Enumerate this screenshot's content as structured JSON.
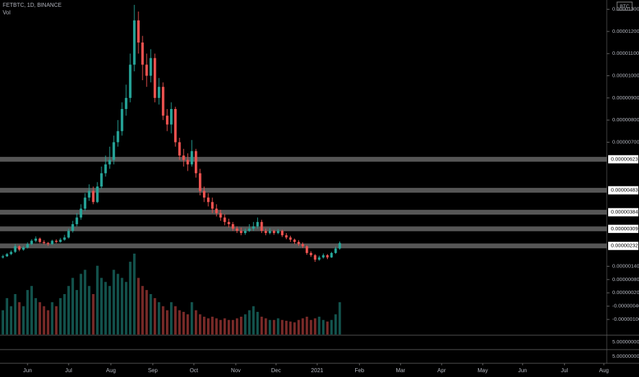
{
  "chart_data": {
    "type": "candlestick",
    "title": "FETBTC, 1D, BINANCE",
    "volume_label": "Vol",
    "currency": "BTC",
    "up_color": "#26a69a",
    "down_color": "#ef5350",
    "open": [
      1.8e-06,
      1.85e-06,
      1.95e-06,
      2.05e-06,
      2.3e-06,
      2.15e-06,
      2.25e-06,
      2.4e-06,
      2.55e-06,
      2.65e-06,
      2.5e-06,
      2.45e-06,
      2.4e-06,
      2.55e-06,
      2.5e-06,
      2.6e-06,
      2.7e-06,
      3e-06,
      3.3e-06,
      3.6e-06,
      4e-06,
      4.5e-06,
      4.8e-06,
      4.3e-06,
      5e-06,
      5.6e-06,
      6e-06,
      6.2e-06,
      7e-06,
      7.5e-06,
      8.5e-06,
      9e-06,
      1.05e-05,
      1.25e-05,
      1.15e-05,
      1.05e-05,
      1e-05,
      1.08e-05,
      9e-06,
      9.5e-06,
      8.2e-06,
      7.8e-06,
      8.5e-06,
      7e-06,
      6.4e-06,
      6.2e-06,
      6e-06,
      6.6e-06,
      5.6e-06,
      4.8e-06,
      4.5e-06,
      4.3e-06,
      4e-06,
      3.8e-06,
      3.6e-06,
      3.4e-06,
      3.3e-06,
      3.1e-06,
      3e-06,
      2.9e-06,
      3e-06,
      3.1e-06,
      3.2e-06,
      3.4e-06,
      3e-06,
      2.9e-06,
      3e-06,
      2.9e-06,
      3e-06,
      2.8e-06,
      2.7e-06,
      2.6e-06,
      2.5e-06,
      2.4e-06,
      2.3e-06,
      2e-06,
      1.9e-06,
      1.7e-06,
      1.8e-06,
      1.9e-06,
      1.8e-06,
      2e-06,
      2.2e-06
    ],
    "high": [
      1.92e-06,
      2e-06,
      2.12e-06,
      2.4e-06,
      2.35e-06,
      2.32e-06,
      2.48e-06,
      2.62e-06,
      2.75e-06,
      2.7e-06,
      2.58e-06,
      2.5e-06,
      2.6e-06,
      2.62e-06,
      2.68e-06,
      2.82e-06,
      3.1e-06,
      3.45e-06,
      3.8e-06,
      4.2e-06,
      4.7e-06,
      5.1e-06,
      5e-06,
      5.2e-06,
      5.9e-06,
      6.4e-06,
      6.8e-06,
      7.3e-06,
      8e-06,
      8.8e-06,
      9.6e-06,
      1.1e-05,
      1.32e-05,
      1.29e-05,
      1.18e-05,
      1.1e-05,
      1.12e-05,
      1.1e-05,
      9.9e-06,
      9.7e-06,
      8.5e-06,
      8.8e-06,
      8.6e-06,
      7.2e-06,
      6.7e-06,
      6.5e-06,
      7.1e-06,
      6.7e-06,
      5.8e-06,
      5e-06,
      4.7e-06,
      4.5e-06,
      4.2e-06,
      3.95e-06,
      3.75e-06,
      3.55e-06,
      3.4e-06,
      3.2e-06,
      3.15e-06,
      3.1e-06,
      3.3e-06,
      3.4e-06,
      3.6e-06,
      3.5e-06,
      3.1e-06,
      3.12e-06,
      3.05e-06,
      3.08e-06,
      3.05e-06,
      2.9e-06,
      2.78e-06,
      2.65e-06,
      2.58e-06,
      2.48e-06,
      2.35e-06,
      2.08e-06,
      1.95e-06,
      1.88e-06,
      1.98e-06,
      1.95e-06,
      2.05e-06,
      2.28e-06,
      2.52e-06
    ],
    "low": [
      1.75e-06,
      1.82e-06,
      1.9e-06,
      2e-06,
      2.08e-06,
      2.1e-06,
      2.2e-06,
      2.35e-06,
      2.48e-06,
      2.44e-06,
      2.38e-06,
      2.32e-06,
      2.36e-06,
      2.44e-06,
      2.46e-06,
      2.55e-06,
      2.65e-06,
      2.92e-06,
      3.2e-06,
      3.5e-06,
      3.9e-06,
      4.35e-06,
      4.2e-06,
      4.25e-06,
      4.9e-06,
      5.45e-06,
      5.8e-06,
      6e-06,
      6.8e-06,
      7.3e-06,
      8.2e-06,
      8.8e-06,
      1.02e-05,
      1.1e-05,
      9.8e-06,
      9.5e-06,
      9.7e-06,
      8.8e-06,
      8.7e-06,
      8e-06,
      7.5e-06,
      7.4e-06,
      6.8e-06,
      6.2e-06,
      5.9e-06,
      5.7e-06,
      5.9e-06,
      5.4e-06,
      4.6e-06,
      4.3e-06,
      4.1e-06,
      3.8e-06,
      3.65e-06,
      3.45e-06,
      3.25e-06,
      3.15e-06,
      3e-06,
      2.9e-06,
      2.8e-06,
      2.82e-06,
      2.95e-06,
      3e-06,
      3.1e-06,
      2.9e-06,
      2.8e-06,
      2.84e-06,
      2.82e-06,
      2.85e-06,
      2.72e-06,
      2.62e-06,
      2.5e-06,
      2.4e-06,
      2.32e-06,
      2.22e-06,
      1.92e-06,
      1.82e-06,
      1.6e-06,
      1.65e-06,
      1.75e-06,
      1.72e-06,
      1.78e-06,
      1.96e-06,
      2.15e-06
    ],
    "close": [
      1.85e-06,
      1.95e-06,
      2.05e-06,
      2.3e-06,
      2.15e-06,
      2.25e-06,
      2.4e-06,
      2.55e-06,
      2.65e-06,
      2.5e-06,
      2.45e-06,
      2.4e-06,
      2.55e-06,
      2.5e-06,
      2.6e-06,
      2.7e-06,
      3e-06,
      3.3e-06,
      3.6e-06,
      4e-06,
      4.5e-06,
      4.8e-06,
      4.3e-06,
      5e-06,
      5.6e-06,
      6e-06,
      6.2e-06,
      7e-06,
      7.5e-06,
      8.5e-06,
      9e-06,
      1.05e-05,
      1.25e-05,
      1.15e-05,
      1.05e-05,
      1e-05,
      1.08e-05,
      9e-06,
      9.5e-06,
      8.2e-06,
      7.8e-06,
      8.5e-06,
      7e-06,
      6.4e-06,
      6.2e-06,
      6e-06,
      6.6e-06,
      5.6e-06,
      4.8e-06,
      4.5e-06,
      4.3e-06,
      4e-06,
      3.8e-06,
      3.6e-06,
      3.4e-06,
      3.3e-06,
      3.1e-06,
      3e-06,
      2.9e-06,
      3e-06,
      3.1e-06,
      3.2e-06,
      3.4e-06,
      3e-06,
      2.9e-06,
      3e-06,
      2.9e-06,
      3e-06,
      2.8e-06,
      2.7e-06,
      2.6e-06,
      2.5e-06,
      2.4e-06,
      2.3e-06,
      2e-06,
      1.9e-06,
      1.7e-06,
      1.8e-06,
      1.9e-06,
      1.8e-06,
      2e-06,
      2.2e-06,
      2.45e-06
    ],
    "volume": [
      30,
      45,
      35,
      50,
      40,
      35,
      55,
      60,
      45,
      40,
      35,
      30,
      40,
      35,
      45,
      50,
      60,
      70,
      55,
      75,
      80,
      60,
      50,
      85,
      70,
      65,
      60,
      80,
      75,
      70,
      65,
      90,
      100,
      70,
      60,
      55,
      50,
      45,
      40,
      35,
      30,
      40,
      35,
      30,
      28,
      25,
      40,
      30,
      25,
      22,
      20,
      22,
      20,
      18,
      20,
      18,
      18,
      20,
      22,
      25,
      30,
      35,
      28,
      22,
      20,
      18,
      18,
      20,
      18,
      17,
      16,
      15,
      18,
      20,
      22,
      18,
      20,
      22,
      18,
      16,
      18,
      25,
      40
    ],
    "xlim": [
      -0.7,
      147
    ],
    "xticks": [
      {
        "value": 6,
        "label": "Jun"
      },
      {
        "value": 16,
        "label": "Jul"
      },
      {
        "value": 26.3,
        "label": "Aug"
      },
      {
        "value": 36.5,
        "label": "Sep"
      },
      {
        "value": 46.5,
        "label": "Oct"
      },
      {
        "value": 56.7,
        "label": "Nov"
      },
      {
        "value": 66.5,
        "label": "Dec"
      },
      {
        "value": 76.5,
        "label": "2021"
      },
      {
        "value": 86.8,
        "label": "Feb"
      },
      {
        "value": 96.8,
        "label": "Mar"
      },
      {
        "value": 106.8,
        "label": "Apr"
      },
      {
        "value": 116.8,
        "label": "May"
      },
      {
        "value": 126.5,
        "label": "Jun"
      },
      {
        "value": 136.7,
        "label": "Jul"
      },
      {
        "value": 146.3,
        "label": "Aug"
      }
    ],
    "ylim": [
      -1.68e-06,
      1.342e-05
    ],
    "yticks": [
      {
        "value": 1.3e-05,
        "label": "0.00001300"
      },
      {
        "value": 1.2e-05,
        "label": "0.00001200"
      },
      {
        "value": 1.1e-05,
        "label": "0.00001100"
      },
      {
        "value": 1e-05,
        "label": "0.00001000"
      },
      {
        "value": 9e-06,
        "label": "0.00000900"
      },
      {
        "value": 8e-06,
        "label": "0.00000800"
      },
      {
        "value": 7e-06,
        "label": "0.00000700"
      },
      {
        "value": 1.4e-06,
        "label": "0.00000140"
      },
      {
        "value": 8e-07,
        "label": "0.00000080"
      },
      {
        "value": 2e-07,
        "label": "0.00000020"
      },
      {
        "value": -4e-07,
        "label": "-0.00000040"
      },
      {
        "value": -1e-06,
        "label": "-0.00000100"
      }
    ],
    "levels": [
      {
        "value": 6.23e-06,
        "label": "0.00000623"
      },
      {
        "value": 4.83e-06,
        "label": "0.00000483"
      },
      {
        "value": 3.84e-06,
        "label": "0.00000384"
      },
      {
        "value": 3.09e-06,
        "label": "0.00000309"
      },
      {
        "value": 2.32e-06,
        "label": "0.00000232"
      }
    ],
    "pane_ticks": [
      {
        "value": 5,
        "label": "5.00000000"
      },
      {
        "value": 5,
        "label": "5.00000000"
      }
    ]
  }
}
